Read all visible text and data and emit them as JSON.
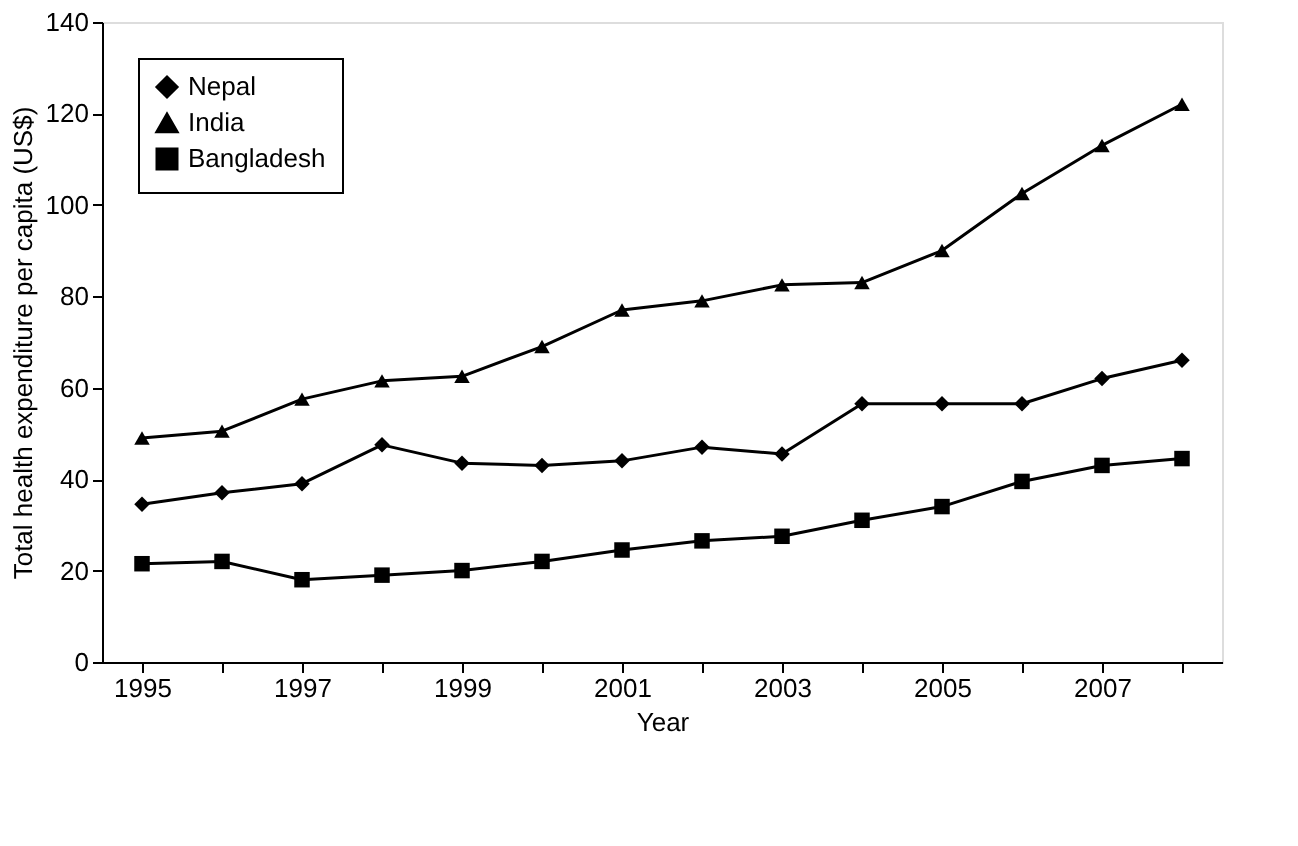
{
  "chart_data": {
    "type": "line",
    "xlabel": "Year",
    "ylabel": "Total health expenditure per capita (US$)",
    "categories": [
      "1995",
      null,
      "1997",
      null,
      "1999",
      null,
      "2001",
      null,
      "2003",
      null,
      "2005",
      null,
      "2007",
      null
    ],
    "series": [
      {
        "name": "Nepal",
        "color": "#000000",
        "marker": "diamond",
        "values": [
          34.5,
          37,
          39,
          47.5,
          43.5,
          43,
          44,
          47,
          45.5,
          56.5,
          56.5,
          56.5,
          62,
          66
        ]
      },
      {
        "name": "India",
        "color": "#000000",
        "marker": "triangle",
        "values": [
          49,
          50.5,
          57.5,
          61.5,
          62.5,
          69,
          77,
          79,
          82.5,
          83,
          90,
          102.5,
          113,
          122
        ]
      },
      {
        "name": "Bangladesh",
        "color": "#000000",
        "marker": "square",
        "values": [
          21.5,
          22,
          18,
          19,
          20,
          22,
          24.5,
          26.5,
          27.5,
          31,
          34,
          39.5,
          43,
          44.5
        ]
      }
    ],
    "ylim": [
      0,
      140
    ],
    "yticks": [
      0,
      20,
      40,
      60,
      80,
      100,
      120,
      140
    ],
    "grid": false,
    "legend": "top left"
  }
}
